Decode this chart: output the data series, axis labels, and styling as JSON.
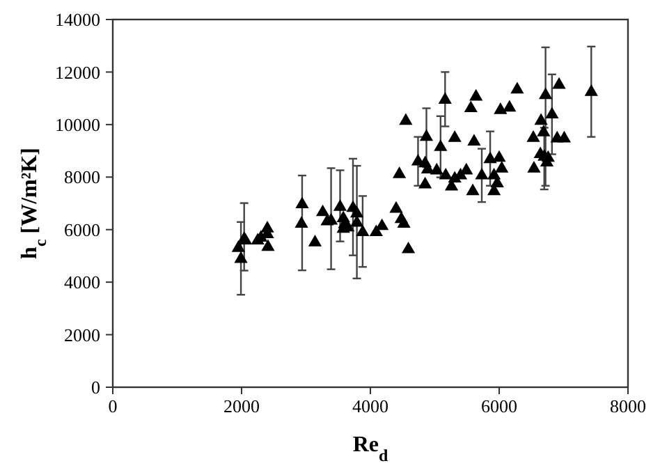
{
  "chart_data": {
    "type": "scatter",
    "xlabel": "Re$_{d}$",
    "ylabel": "h$_{c}$ [W/m²K]",
    "xlim": [
      0,
      8000
    ],
    "ylim": [
      0,
      14000
    ],
    "xticks": [
      0,
      2000,
      4000,
      6000,
      8000
    ],
    "yticks": [
      0,
      2000,
      4000,
      6000,
      8000,
      10000,
      12000,
      14000
    ],
    "marker": "triangle",
    "grid": false,
    "series": [
      {
        "color": "#000000",
        "x": [
          1950,
          1990,
          2040,
          2060,
          2250,
          2300,
          2400,
          2400,
          2410,
          2940,
          2930,
          3140,
          3260,
          3330,
          3390,
          3530,
          3580,
          3600,
          3580,
          3650,
          3730,
          3790,
          3790,
          3880,
          4090,
          4180,
          4400,
          4450,
          4480,
          4520,
          4590,
          4550,
          4740,
          4850,
          4870,
          4890,
          4850,
          5030,
          5090,
          5160,
          5170,
          5260,
          5310,
          5310,
          5400,
          5490,
          5560,
          5590,
          5610,
          5640,
          5730,
          5860,
          5920,
          5920,
          5970,
          6000,
          6040,
          6020,
          6160,
          6280,
          6530,
          6540,
          6640,
          6650,
          6690,
          6700,
          6720,
          6740,
          6760,
          6820,
          6930,
          6900,
          7010,
          7430
        ],
        "values": [
          5300,
          4880,
          5640,
          5580,
          5580,
          5690,
          6040,
          5820,
          5340,
          6960,
          6220,
          5510,
          6660,
          6310,
          6340,
          6860,
          6430,
          6200,
          6030,
          6080,
          6820,
          6610,
          6260,
          5900,
          5900,
          6130,
          6790,
          8110,
          6400,
          6220,
          5250,
          10140,
          8590,
          8520,
          9530,
          8290,
          7720,
          8250,
          9140,
          10940,
          8060,
          7640,
          7940,
          9490,
          8060,
          8250,
          10620,
          7460,
          9350,
          11060,
          8060,
          8680,
          8060,
          7460,
          7760,
          8730,
          8320,
          10550,
          10640,
          11330,
          9490,
          8320,
          8870,
          10140,
          9700,
          8770,
          11120,
          8550,
          8730,
          10380,
          11510,
          9470,
          9470,
          11240
        ],
        "errors": [
          null,
          [
            3520,
            6290
          ],
          [
            4440,
            7010
          ],
          null,
          null,
          null,
          null,
          null,
          null,
          [
            4450,
            8060
          ],
          null,
          null,
          null,
          null,
          [
            4490,
            8340
          ],
          [
            5550,
            8260
          ],
          null,
          null,
          null,
          null,
          [
            5020,
            8700
          ],
          [
            4140,
            8430
          ],
          null,
          [
            4580,
            7280
          ],
          null,
          null,
          null,
          null,
          null,
          null,
          null,
          null,
          [
            7670,
            9530
          ],
          null,
          [
            8380,
            10620
          ],
          null,
          null,
          null,
          [
            7990,
            10320
          ],
          [
            9930,
            12000
          ],
          null,
          null,
          null,
          null,
          null,
          null,
          null,
          null,
          null,
          null,
          [
            7050,
            9080
          ],
          [
            7670,
            9740
          ],
          null,
          null,
          null,
          null,
          null,
          null,
          null,
          null,
          null,
          null,
          null,
          null,
          null,
          [
            7530,
            9880
          ],
          [
            7670,
            12940
          ],
          null,
          null,
          [
            8870,
            11910
          ],
          null,
          null,
          null,
          [
            9530,
            12970
          ]
        ]
      }
    ]
  }
}
